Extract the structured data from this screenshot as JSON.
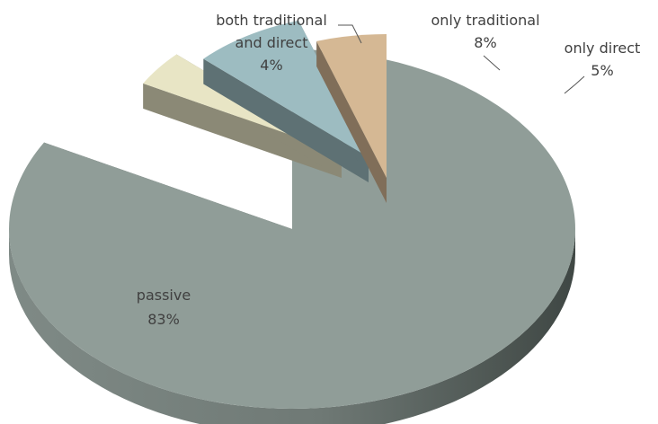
{
  "chart_data": {
    "type": "pie",
    "style": "3d-exploded",
    "slices": [
      {
        "label_lines": [
          "passive"
        ],
        "value": 83,
        "display": "83%",
        "color": "#909d98"
      },
      {
        "label_lines": [
          "both traditional",
          "and direct"
        ],
        "value": 4,
        "display": "4%",
        "color": "#e8e5c5"
      },
      {
        "label_lines": [
          "only traditional"
        ],
        "value": 8,
        "display": "8%",
        "color": "#9dbcc1"
      },
      {
        "label_lines": [
          "only direct"
        ],
        "value": 5,
        "display": "5%",
        "color": "#d5b894"
      }
    ]
  }
}
